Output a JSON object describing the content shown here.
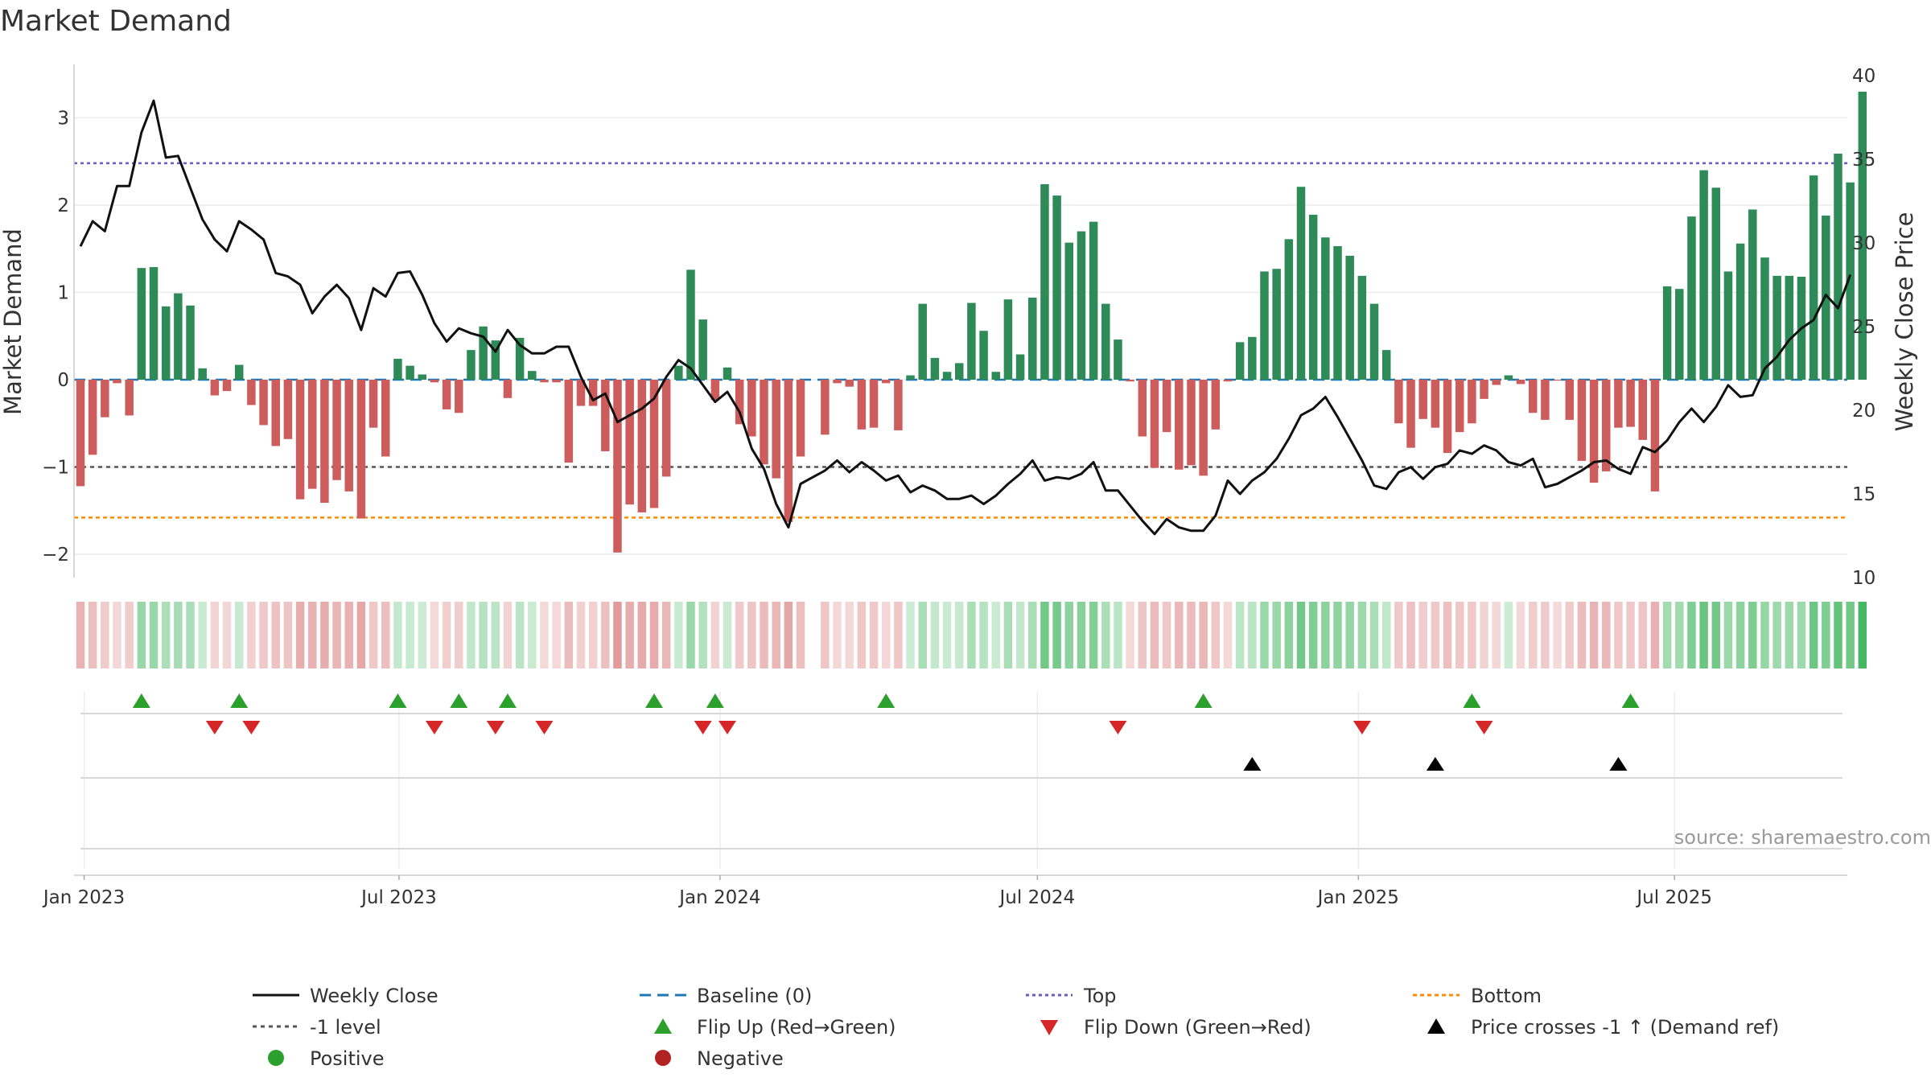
{
  "chart_data": {
    "type": "bar",
    "title": "Market Demand",
    "ylabel": "Market Demand",
    "y2label": "Weekly Close Price",
    "ylim": [
      -2.3,
      3.5
    ],
    "y2lim": [
      10,
      40
    ],
    "yticks": [
      -2,
      -1,
      0,
      1,
      2,
      3
    ],
    "ytick_labels": [
      "−2",
      "−1",
      "0",
      "1",
      "2",
      "3"
    ],
    "y2ticks": [
      10,
      15,
      20,
      25,
      30,
      35,
      40
    ],
    "y2tick_labels": [
      "10",
      "15",
      "20",
      "25",
      "30",
      "35",
      "40"
    ],
    "x_start": "2023-01-01",
    "weeks": 145,
    "xticks": [
      {
        "label": "Jan 2023",
        "week": 0.3
      },
      {
        "label": "Jul 2023",
        "week": 26.1
      },
      {
        "label": "Jan 2024",
        "week": 52.4
      },
      {
        "label": "Jul 2024",
        "week": 78.4
      },
      {
        "label": "Jan 2025",
        "week": 104.7
      },
      {
        "label": "Jul 2025",
        "week": 130.6
      }
    ],
    "top_level": 2.48,
    "bottom_level": -1.58,
    "minus_one_level": -1,
    "demand": [
      -1.22,
      -0.86,
      -0.43,
      -0.04,
      -0.41,
      1.28,
      1.29,
      0.84,
      0.99,
      0.85,
      0.13,
      -0.18,
      -0.13,
      0.17,
      -0.29,
      -0.52,
      -0.76,
      -0.68,
      -1.37,
      -1.25,
      -1.41,
      -1.15,
      -1.28,
      -1.59,
      -0.55,
      -0.88,
      0.24,
      0.16,
      0.06,
      -0.03,
      -0.34,
      -0.38,
      0.34,
      0.61,
      0.45,
      -0.21,
      0.48,
      0.1,
      -0.03,
      -0.03,
      -0.95,
      -0.3,
      -0.3,
      -0.82,
      -1.98,
      -1.43,
      -1.52,
      -1.47,
      -1.11,
      0.16,
      1.26,
      0.69,
      -0.23,
      0.14,
      -0.51,
      -0.65,
      -0.97,
      -1.13,
      -1.63,
      -0.88,
      0,
      -0.63,
      -0.04,
      -0.08,
      -0.57,
      -0.55,
      -0.04,
      -0.58,
      0.05,
      0.87,
      0.25,
      0.09,
      0.19,
      0.88,
      0.56,
      0.09,
      0.92,
      0.29,
      0.94,
      2.24,
      2.11,
      1.57,
      1.7,
      1.81,
      0.87,
      0.46,
      -0.02,
      -0.65,
      -1.01,
      -0.6,
      -1.03,
      -0.98,
      -1.1,
      -0.57,
      -0.02,
      0.43,
      0.49,
      1.24,
      1.27,
      1.61,
      2.21,
      1.89,
      1.63,
      1.53,
      1.42,
      1.19,
      0.87,
      0.34,
      -0.5,
      -0.78,
      -0.45,
      -0.55,
      -0.84,
      -0.6,
      -0.5,
      -0.22,
      -0.06,
      0.05,
      -0.05,
      -0.38,
      -0.46,
      -0.01,
      -0.46,
      -0.93,
      -1.18,
      -1.05,
      -0.55,
      -0.54,
      -0.69,
      -1.28,
      1.07,
      1.04,
      1.87,
      2.4,
      2.2,
      1.24,
      1.56,
      1.95,
      1.4,
      1.19,
      1.19,
      1.18,
      2.34,
      1.88,
      2.59,
      2.26,
      3.3
    ],
    "price": [
      29.8,
      31.3,
      30.7,
      33.4,
      33.4,
      36.6,
      38.5,
      35.1,
      35.2,
      33.3,
      31.4,
      30.2,
      29.5,
      31.3,
      30.8,
      30.2,
      28.2,
      28.0,
      27.5,
      25.8,
      26.8,
      27.5,
      26.7,
      24.8,
      27.3,
      26.8,
      28.2,
      28.3,
      26.9,
      25.2,
      24.1,
      24.9,
      24.6,
      24.4,
      23.5,
      24.8,
      23.9,
      23.4,
      23.4,
      23.8,
      23.8,
      22.0,
      20.6,
      21.0,
      19.3,
      19.7,
      20.1,
      20.7,
      22.0,
      23.0,
      22.5,
      21.5,
      20.5,
      21.1,
      19.9,
      17.7,
      16.5,
      14.4,
      13.0,
      15.6,
      16.0,
      16.4,
      17.0,
      16.3,
      16.9,
      16.4,
      15.8,
      16.1,
      15.1,
      15.5,
      15.2,
      14.7,
      14.7,
      14.9,
      14.4,
      14.9,
      15.6,
      16.2,
      17.0,
      15.8,
      16.0,
      15.9,
      16.2,
      16.9,
      15.2,
      15.2,
      14.3,
      13.4,
      12.6,
      13.5,
      13.0,
      12.8,
      12.8,
      13.7,
      15.8,
      15.0,
      15.8,
      16.3,
      17.1,
      18.3,
      19.7,
      20.1,
      20.8,
      19.6,
      18.3,
      17.0,
      15.5,
      15.3,
      16.3,
      16.6,
      15.9,
      16.6,
      16.8,
      17.6,
      17.4,
      17.9,
      17.6,
      16.9,
      16.7,
      17.1,
      15.4,
      15.6,
      16.0,
      16.4,
      16.9,
      17.0,
      16.5,
      16.2,
      17.8,
      17.5,
      18.2,
      19.3,
      20.1,
      19.3,
      20.2,
      21.5,
      20.8,
      20.9,
      22.5,
      23.2,
      24.2,
      24.9,
      25.4,
      26.9,
      26.1,
      28.1
    ],
    "flip_up_weeks": [
      5,
      13,
      26,
      31,
      35,
      47,
      52,
      66,
      92,
      114,
      127
    ],
    "flip_down_weeks": [
      11,
      14,
      29,
      34,
      38,
      51,
      53,
      85,
      105,
      115
    ],
    "price_cross_weeks": [
      96,
      111,
      126
    ],
    "colors": {
      "positive_bar": "#2e8b57",
      "negative_bar": "#cd5c5c",
      "close_line": "#111111",
      "baseline": "#1f77b4",
      "top": "#6a5acd",
      "bottom": "#ff8c00",
      "minus_one": "#555555",
      "flip_up": "#2ca02c",
      "flip_down": "#d62728",
      "price_cross": "#000000",
      "positive_dot": "#2ca02c",
      "negative_dot": "#b22222"
    },
    "legend": {
      "weekly_close": "Weekly Close",
      "baseline": "Baseline (0)",
      "top": "Top",
      "bottom": "Bottom",
      "minus_one": "-1 level",
      "flip_up": "Flip Up (Red→Green)",
      "flip_down": "Flip Down (Green→Red)",
      "price_cross": "Price crosses -1 ↑ (Demand ref)",
      "positive": "Positive",
      "negative": "Negative"
    },
    "source": "source: sharemaestro.com"
  }
}
